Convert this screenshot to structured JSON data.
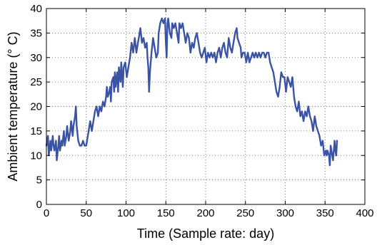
{
  "chart_data": {
    "type": "line",
    "xlabel": "Time (Sample rate: day)",
    "ylabel": "Ambient temperature (° C)",
    "xlim": [
      0,
      400
    ],
    "ylim": [
      0,
      40
    ],
    "xticks": [
      0,
      50,
      100,
      150,
      200,
      250,
      300,
      350,
      400
    ],
    "yticks": [
      0,
      5,
      10,
      15,
      20,
      25,
      30,
      35,
      40
    ],
    "grid": true,
    "line_color": "#3a53a4",
    "series": [
      {
        "points": [
          [
            0,
            12
          ],
          [
            2,
            14
          ],
          [
            3,
            10
          ],
          [
            5,
            13
          ],
          [
            6,
            11
          ],
          [
            8,
            14
          ],
          [
            9,
            12
          ],
          [
            10,
            11
          ],
          [
            12,
            13
          ],
          [
            13,
            9
          ],
          [
            15,
            12
          ],
          [
            16,
            14
          ],
          [
            17,
            11
          ],
          [
            19,
            13
          ],
          [
            20,
            12
          ],
          [
            22,
            15
          ],
          [
            23,
            12
          ],
          [
            25,
            14
          ],
          [
            26,
            16
          ],
          [
            28,
            13
          ],
          [
            30,
            15
          ],
          [
            31,
            17
          ],
          [
            33,
            14
          ],
          [
            34,
            16
          ],
          [
            36,
            18
          ],
          [
            37,
            20
          ],
          [
            38,
            16
          ],
          [
            40,
            13
          ],
          [
            42,
            12
          ],
          [
            44,
            12
          ],
          [
            46,
            13
          ],
          [
            48,
            12
          ],
          [
            50,
            12
          ],
          [
            52,
            14
          ],
          [
            54,
            16
          ],
          [
            55,
            17
          ],
          [
            57,
            15
          ],
          [
            59,
            17
          ],
          [
            61,
            19
          ],
          [
            63,
            20
          ],
          [
            65,
            18
          ],
          [
            67,
            20
          ],
          [
            69,
            19
          ],
          [
            71,
            21
          ],
          [
            73,
            20
          ],
          [
            75,
            22
          ],
          [
            76,
            24
          ],
          [
            77,
            22
          ],
          [
            79,
            23
          ],
          [
            80,
            24
          ],
          [
            81,
            21
          ],
          [
            82,
            25
          ],
          [
            84,
            26
          ],
          [
            85,
            23
          ],
          [
            86,
            27
          ],
          [
            87,
            24
          ],
          [
            89,
            27
          ],
          [
            90,
            23
          ],
          [
            91,
            28
          ],
          [
            93,
            25
          ],
          [
            94,
            29
          ],
          [
            96,
            24
          ],
          [
            97,
            28
          ],
          [
            99,
            29
          ],
          [
            101,
            26
          ],
          [
            103,
            28
          ],
          [
            105,
            30
          ],
          [
            107,
            33
          ],
          [
            109,
            31
          ],
          [
            111,
            34
          ],
          [
            113,
            31
          ],
          [
            115,
            33
          ],
          [
            117,
            35
          ],
          [
            118,
            36
          ],
          [
            120,
            33
          ],
          [
            122,
            34
          ],
          [
            124,
            32
          ],
          [
            126,
            33
          ],
          [
            127,
            30
          ],
          [
            128,
            28
          ],
          [
            129,
            23
          ],
          [
            130,
            27
          ],
          [
            132,
            31
          ],
          [
            134,
            34
          ],
          [
            136,
            32
          ],
          [
            138,
            30
          ],
          [
            140,
            31
          ],
          [
            141,
            35
          ],
          [
            143,
            37
          ],
          [
            145,
            38
          ],
          [
            147,
            37
          ],
          [
            149,
            38
          ],
          [
            150,
            33
          ],
          [
            151,
            30
          ],
          [
            152,
            37
          ],
          [
            153,
            38
          ],
          [
            155,
            35
          ],
          [
            157,
            34
          ],
          [
            158,
            37
          ],
          [
            160,
            36
          ],
          [
            162,
            37
          ],
          [
            164,
            35
          ],
          [
            166,
            33
          ],
          [
            167,
            37
          ],
          [
            169,
            36
          ],
          [
            171,
            37
          ],
          [
            173,
            35
          ],
          [
            175,
            33
          ],
          [
            177,
            35
          ],
          [
            179,
            34
          ],
          [
            181,
            31
          ],
          [
            183,
            33
          ],
          [
            185,
            32
          ],
          [
            187,
            34
          ],
          [
            189,
            35
          ],
          [
            191,
            33
          ],
          [
            193,
            31
          ],
          [
            195,
            30
          ],
          [
            197,
            31
          ],
          [
            199,
            32
          ],
          [
            201,
            29
          ],
          [
            203,
            31
          ],
          [
            205,
            30
          ],
          [
            207,
            31
          ],
          [
            209,
            30
          ],
          [
            211,
            31
          ],
          [
            213,
            29
          ],
          [
            215,
            31
          ],
          [
            217,
            32
          ],
          [
            219,
            30
          ],
          [
            221,
            32
          ],
          [
            223,
            33
          ],
          [
            225,
            31
          ],
          [
            227,
            30
          ],
          [
            229,
            34
          ],
          [
            231,
            32
          ],
          [
            233,
            31
          ],
          [
            235,
            33
          ],
          [
            237,
            35
          ],
          [
            239,
            36
          ],
          [
            240,
            34
          ],
          [
            242,
            33
          ],
          [
            244,
            32
          ],
          [
            245,
            30
          ],
          [
            247,
            31
          ],
          [
            249,
            31
          ],
          [
            251,
            29
          ],
          [
            253,
            31
          ],
          [
            255,
            29
          ],
          [
            257,
            30
          ],
          [
            259,
            31
          ],
          [
            261,
            30
          ],
          [
            263,
            31
          ],
          [
            265,
            30
          ],
          [
            267,
            31
          ],
          [
            269,
            30
          ],
          [
            271,
            31
          ],
          [
            273,
            31
          ],
          [
            275,
            30
          ],
          [
            277,
            31
          ],
          [
            279,
            31
          ],
          [
            281,
            29
          ],
          [
            283,
            28
          ],
          [
            285,
            27
          ],
          [
            287,
            25
          ],
          [
            289,
            23
          ],
          [
            291,
            22
          ],
          [
            293,
            24
          ],
          [
            295,
            27
          ],
          [
            297,
            26
          ],
          [
            299,
            26
          ],
          [
            301,
            23
          ],
          [
            303,
            26
          ],
          [
            305,
            25
          ],
          [
            307,
            24
          ],
          [
            309,
            26
          ],
          [
            311,
            22
          ],
          [
            313,
            20
          ],
          [
            315,
            19
          ],
          [
            317,
            21
          ],
          [
            319,
            18
          ],
          [
            321,
            19
          ],
          [
            323,
            17
          ],
          [
            325,
            19
          ],
          [
            327,
            18
          ],
          [
            329,
            20
          ],
          [
            331,
            18
          ],
          [
            333,
            17
          ],
          [
            335,
            15
          ],
          [
            337,
            18
          ],
          [
            339,
            16
          ],
          [
            341,
            15
          ],
          [
            343,
            14
          ],
          [
            345,
            12
          ],
          [
            347,
            13
          ],
          [
            349,
            10
          ],
          [
            351,
            11
          ],
          [
            352,
            10
          ],
          [
            353,
            11
          ],
          [
            355,
            10
          ],
          [
            356,
            8
          ],
          [
            357,
            12
          ],
          [
            358,
            11
          ],
          [
            360,
            9
          ],
          [
            362,
            13
          ],
          [
            363,
            11
          ],
          [
            364,
            10
          ],
          [
            365,
            13
          ]
        ]
      }
    ]
  }
}
